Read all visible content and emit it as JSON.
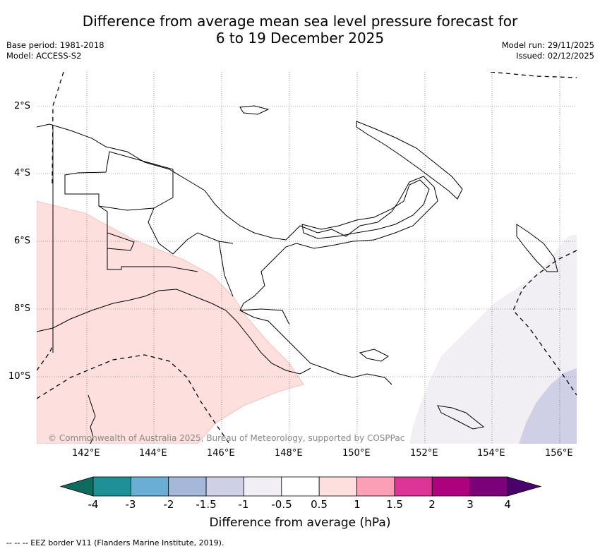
{
  "title": {
    "line1": "Difference from average mean sea level pressure forecast for",
    "line2": "6 to 19 December 2025"
  },
  "meta_left": {
    "base_period": "Base period: 1981-2018",
    "model": "Model: ACCESS-S2"
  },
  "meta_right": {
    "model_run": "Model run: 29/11/2025",
    "issued": "Issued: 02/12/2025"
  },
  "copyright": "© Commonwealth of Australia 2025, Bureau of Meteorology, supported by COSPPac",
  "footer": "--  --  -- EEZ border V11 (Flanders Marine Institute, 2019).",
  "axes": {
    "lat_labels": [
      "2°S",
      "4°S",
      "6°S",
      "8°S",
      "10°S"
    ],
    "lon_labels": [
      "142°E",
      "144°E",
      "146°E",
      "148°E",
      "150°E",
      "152°E",
      "154°E",
      "156°E"
    ]
  },
  "colorbar": {
    "label": "Difference from average (hPa)",
    "ticks": [
      "-4",
      "-3",
      "-2",
      "-1.5",
      "-1",
      "-0.5",
      "0.5",
      "1",
      "1.5",
      "2",
      "3",
      "4"
    ],
    "colors": {
      "below": "#0e6b5e",
      "bins": [
        "#1e9096",
        "#6aaed6",
        "#a6b8d9",
        "#cfd0e6",
        "#f1eef4",
        "#ffffff",
        "#fde0dd",
        "#fa9fb5",
        "#dd3497",
        "#ae017e",
        "#7a0177"
      ],
      "above": "#49006a"
    }
  },
  "colors": {
    "positive_fill": "#fde0dd",
    "negative_fill_light": "#f1eef4",
    "negative_fill_mid": "#cfd0e6"
  }
}
